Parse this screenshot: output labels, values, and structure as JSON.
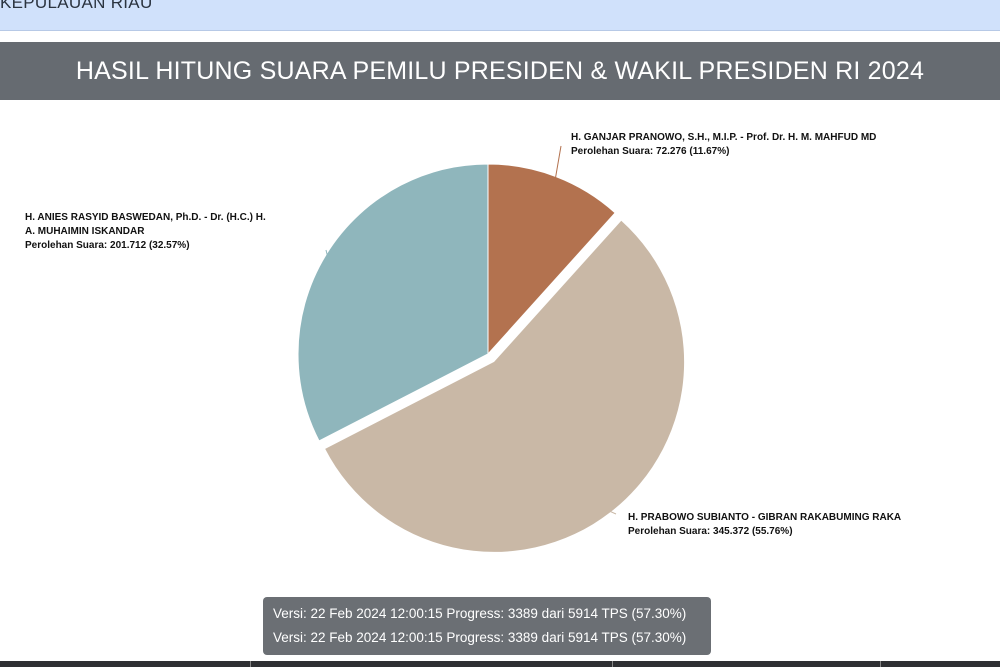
{
  "topbar": {
    "breadcrumb": "KEPULAUAN RIAU"
  },
  "header": {
    "title": "HASIL HITUNG SUARA PEMILU PRESIDEN & WAKIL PRESIDEN RI 2024"
  },
  "chart_data": {
    "type": "pie",
    "title": "",
    "slices": [
      {
        "name_lines": [
          "H. GANJAR PRANOWO, S.H., M.I.P. - Prof. Dr. H. M. MAHFUD MD"
        ],
        "votes_label": "Perolehan Suara: 72.276 (11.67%)",
        "value": 72276,
        "percent": 11.67,
        "color": "#b3724f"
      },
      {
        "name_lines": [
          "H. PRABOWO SUBIANTO - GIBRAN RAKABUMING RAKA"
        ],
        "votes_label": "Perolehan Suara: 345.372 (55.76%)",
        "value": 345372,
        "percent": 55.76,
        "color": "#c9b8a6"
      },
      {
        "name_lines": [
          "H. ANIES RASYID BASWEDAN, Ph.D. - Dr. (H.C.) H.",
          "A. MUHAIMIN ISKANDAR"
        ],
        "votes_label": "Perolehan Suara: 201.712 (32.57%)",
        "value": 201712,
        "percent": 32.57,
        "color": "#8fb6bc"
      }
    ]
  },
  "version": {
    "line1": "Versi: 22 Feb 2024 12:00:15 Progress: 3389 dari 5914 TPS (57.30%)",
    "line2": "Versi: 22 Feb 2024 12:00:15 Progress: 3389 dari 5914 TPS (57.30%)"
  }
}
